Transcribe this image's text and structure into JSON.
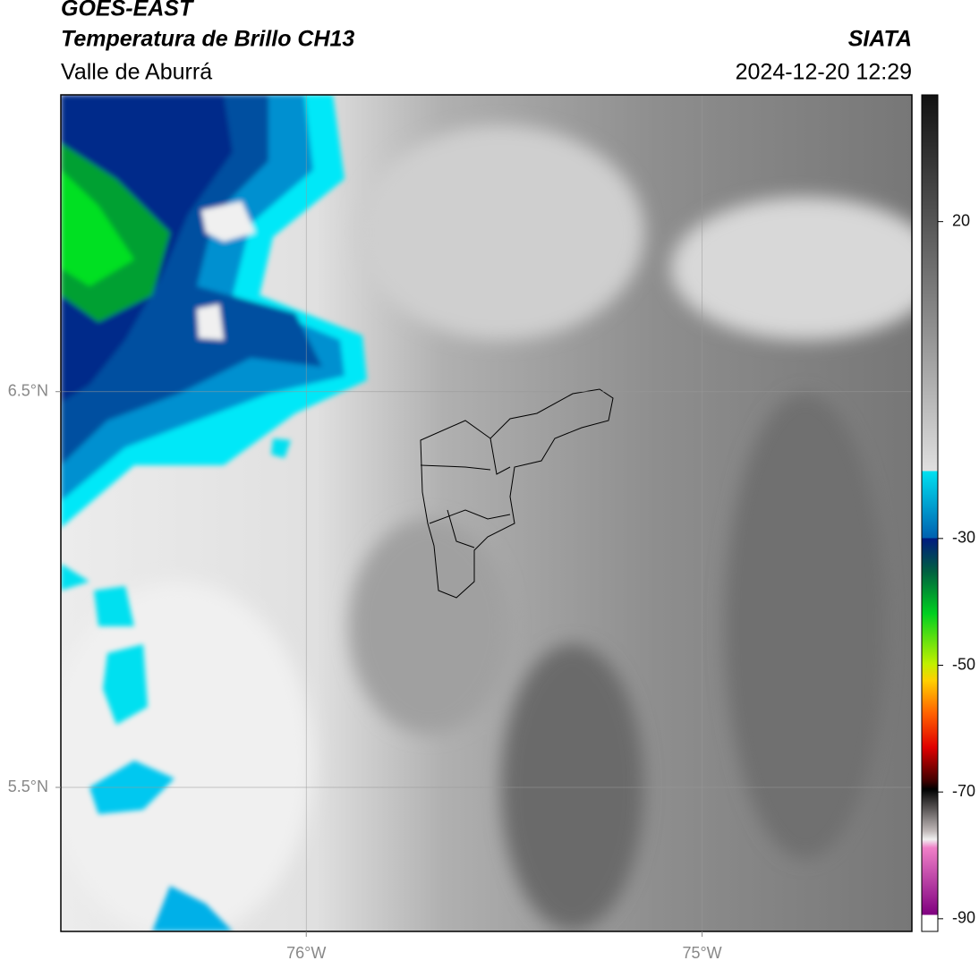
{
  "header": {
    "title": "GOES-EAST",
    "subtitle": "Temperatura de Brillo CH13",
    "region": "Valle de Aburrá",
    "source": "SIATA",
    "datetime": "2024-12-20 12:29"
  },
  "map": {
    "xlim": [
      -76.62,
      -74.47
    ],
    "ylim": [
      5.136,
      7.25
    ],
    "xticks": [
      {
        "value": -76,
        "label": "76°W"
      },
      {
        "value": -75,
        "label": "75°W"
      }
    ],
    "yticks": [
      {
        "value": 6.5,
        "label": "6.5°N"
      },
      {
        "value": 5.5,
        "label": "5.5°N"
      }
    ],
    "grid": true
  },
  "colorbar": {
    "lim": [
      -92,
      40
    ],
    "ticks": [
      20,
      -30,
      -50,
      -70,
      -90
    ]
  }
}
